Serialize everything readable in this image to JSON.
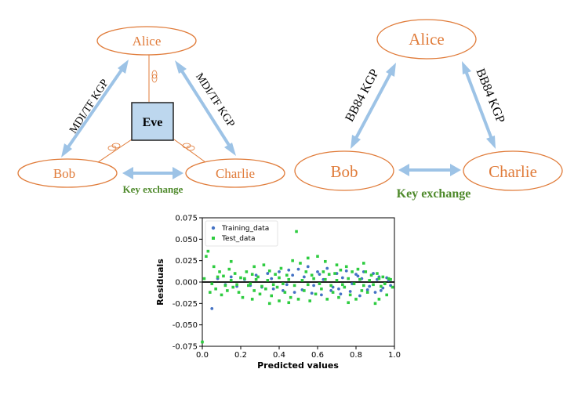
{
  "left_diagram": {
    "nodes": {
      "alice": "Alice",
      "bob": "Bob",
      "charlie": "Charlie",
      "eve": "Eve"
    },
    "edge_left_label": "MDI/TF KGP",
    "edge_right_label": "MDI/TF KGP",
    "exchange_label": "Key exchange"
  },
  "right_diagram": {
    "nodes": {
      "alice": "Alice",
      "bob": "Bob",
      "charlie": "Charlie"
    },
    "edge_left_label": "BB84 KGP",
    "edge_right_label": "BB84 KGP",
    "exchange_label": "Key exchange"
  },
  "colors": {
    "node_stroke": "#e07b39",
    "arrow": "#9dc3e6",
    "eve_fill": "#bdd7ee",
    "green_label": "#4f8a2c",
    "training": "#4472c4",
    "test": "#2ecc40"
  },
  "chart_data": {
    "type": "scatter",
    "xlabel": "Predicted values",
    "ylabel": "Residuals",
    "xlim": [
      0.0,
      1.0
    ],
    "ylim": [
      -0.075,
      0.075
    ],
    "xticks": [
      "0.0",
      "0.2",
      "0.4",
      "0.6",
      "0.8",
      "1.0"
    ],
    "yticks": [
      "0.075",
      "0.050",
      "0.025",
      "0.000",
      "-0.025",
      "-0.050",
      "-0.075"
    ],
    "legend_position": "top-left",
    "reference_line_y": 0.0,
    "series": [
      {
        "name": "Training_data",
        "marker": "circle",
        "points": [
          [
            0.05,
            -0.031
          ],
          [
            0.08,
            0.004
          ],
          [
            0.12,
            -0.003
          ],
          [
            0.15,
            0.006
          ],
          [
            0.18,
            -0.005
          ],
          [
            0.22,
            0.003
          ],
          [
            0.25,
            -0.004
          ],
          [
            0.28,
            0.008
          ],
          [
            0.31,
            -0.006
          ],
          [
            0.34,
            0.01
          ],
          [
            0.37,
            -0.008
          ],
          [
            0.4,
            0.012
          ],
          [
            0.42,
            -0.01
          ],
          [
            0.45,
            0.014
          ],
          [
            0.48,
            -0.012
          ],
          [
            0.5,
            0.015
          ],
          [
            0.52,
            -0.009
          ],
          [
            0.55,
            0.018
          ],
          [
            0.57,
            -0.013
          ],
          [
            0.6,
            0.012
          ],
          [
            0.62,
            -0.015
          ],
          [
            0.65,
            0.016
          ],
          [
            0.67,
            -0.01
          ],
          [
            0.7,
            0.01
          ],
          [
            0.72,
            -0.014
          ],
          [
            0.75,
            0.013
          ],
          [
            0.77,
            -0.011
          ],
          [
            0.8,
            0.009
          ],
          [
            0.82,
            -0.016
          ],
          [
            0.84,
            0.012
          ],
          [
            0.86,
            -0.009
          ],
          [
            0.88,
            0.008
          ],
          [
            0.9,
            -0.012
          ],
          [
            0.92,
            0.006
          ],
          [
            0.94,
            -0.007
          ],
          [
            0.96,
            0.005
          ],
          [
            0.98,
            -0.004
          ],
          [
            0.36,
            0.004
          ],
          [
            0.44,
            -0.003
          ],
          [
            0.53,
            0.006
          ],
          [
            0.58,
            -0.004
          ],
          [
            0.63,
            0.003
          ],
          [
            0.68,
            -0.006
          ],
          [
            0.73,
            0.005
          ],
          [
            0.78,
            -0.002
          ],
          [
            0.83,
            0.004
          ],
          [
            0.87,
            -0.005
          ],
          [
            0.91,
            0.003
          ],
          [
            0.95,
            -0.002
          ],
          [
            0.47,
            0.008
          ],
          [
            0.61,
            0.009
          ],
          [
            0.71,
            -0.008
          ],
          [
            0.81,
            0.007
          ],
          [
            0.89,
            0.01
          ],
          [
            0.93,
            -0.01
          ],
          [
            0.97,
            0.002
          ]
        ]
      },
      {
        "name": "Test_data",
        "marker": "square",
        "points": [
          [
            0.0,
            -0.07
          ],
          [
            0.02,
            0.03
          ],
          [
            0.03,
            0.036
          ],
          [
            0.04,
            -0.012
          ],
          [
            0.06,
            0.018
          ],
          [
            0.07,
            -0.008
          ],
          [
            0.09,
            0.012
          ],
          [
            0.1,
            -0.015
          ],
          [
            0.11,
            0.007
          ],
          [
            0.13,
            -0.01
          ],
          [
            0.14,
            0.015
          ],
          [
            0.16,
            -0.006
          ],
          [
            0.17,
            0.01
          ],
          [
            0.19,
            -0.012
          ],
          [
            0.2,
            0.005
          ],
          [
            0.21,
            -0.018
          ],
          [
            0.23,
            0.012
          ],
          [
            0.24,
            -0.004
          ],
          [
            0.26,
            0.009
          ],
          [
            0.27,
            -0.01
          ],
          [
            0.29,
            0.006
          ],
          [
            0.3,
            -0.014
          ],
          [
            0.32,
            0.02
          ],
          [
            0.33,
            -0.008
          ],
          [
            0.35,
            0.013
          ],
          [
            0.36,
            -0.016
          ],
          [
            0.38,
            0.009
          ],
          [
            0.39,
            -0.006
          ],
          [
            0.41,
            0.016
          ],
          [
            0.43,
            -0.012
          ],
          [
            0.44,
            0.008
          ],
          [
            0.46,
            -0.018
          ],
          [
            0.47,
            0.025
          ],
          [
            0.49,
            0.059
          ],
          [
            0.5,
            -0.02
          ],
          [
            0.51,
            0.022
          ],
          [
            0.53,
            -0.01
          ],
          [
            0.54,
            0.012
          ],
          [
            0.56,
            -0.022
          ],
          [
            0.57,
            0.008
          ],
          [
            0.59,
            -0.014
          ],
          [
            0.6,
            0.03
          ],
          [
            0.62,
            -0.008
          ],
          [
            0.63,
            0.012
          ],
          [
            0.65,
            -0.02
          ],
          [
            0.66,
            0.009
          ],
          [
            0.68,
            -0.012
          ],
          [
            0.69,
            0.01
          ],
          [
            0.71,
            -0.018
          ],
          [
            0.72,
            0.014
          ],
          [
            0.74,
            -0.006
          ],
          [
            0.75,
            0.018
          ],
          [
            0.77,
            -0.015
          ],
          [
            0.78,
            0.012
          ],
          [
            0.8,
            -0.02
          ],
          [
            0.81,
            0.015
          ],
          [
            0.83,
            -0.01
          ],
          [
            0.85,
            0.012
          ],
          [
            0.86,
            -0.012
          ],
          [
            0.88,
            0.008
          ],
          [
            0.9,
            -0.025
          ],
          [
            0.91,
            0.01
          ],
          [
            0.93,
            -0.005
          ],
          [
            0.94,
            0.006
          ],
          [
            0.96,
            -0.015
          ],
          [
            0.97,
            0.004
          ],
          [
            0.99,
            -0.006
          ],
          [
            0.01,
            0.004
          ],
          [
            0.05,
            -0.002
          ],
          [
            0.08,
            0.006
          ],
          [
            0.12,
            -0.004
          ],
          [
            0.15,
            0.002
          ],
          [
            0.18,
            -0.003
          ],
          [
            0.22,
            0.004
          ],
          [
            0.25,
            -0.002
          ],
          [
            0.28,
            0.003
          ],
          [
            0.31,
            -0.005
          ],
          [
            0.34,
            0.002
          ],
          [
            0.37,
            -0.003
          ],
          [
            0.4,
            0.005
          ],
          [
            0.42,
            -0.002
          ],
          [
            0.45,
            0.003
          ],
          [
            0.48,
            -0.004
          ],
          [
            0.52,
            0.002
          ],
          [
            0.55,
            -0.003
          ],
          [
            0.58,
            0.004
          ],
          [
            0.61,
            -0.002
          ],
          [
            0.64,
            0.003
          ],
          [
            0.67,
            -0.004
          ],
          [
            0.7,
            0.002
          ],
          [
            0.73,
            -0.003
          ],
          [
            0.76,
            0.004
          ],
          [
            0.79,
            -0.002
          ],
          [
            0.82,
            0.003
          ],
          [
            0.84,
            -0.004
          ],
          [
            0.87,
            0.002
          ],
          [
            0.89,
            -0.003
          ],
          [
            0.92,
            0.004
          ],
          [
            0.95,
            -0.002
          ],
          [
            0.98,
            0.003
          ],
          [
            0.15,
            0.024
          ],
          [
            0.27,
            0.018
          ],
          [
            0.35,
            -0.025
          ],
          [
            0.4,
            -0.022
          ],
          [
            0.55,
            0.028
          ],
          [
            0.64,
            0.024
          ],
          [
            0.7,
            0.02
          ],
          [
            0.76,
            -0.024
          ],
          [
            0.84,
            0.022
          ],
          [
            0.92,
            -0.02
          ],
          [
            0.26,
            -0.02
          ],
          [
            0.45,
            -0.024
          ]
        ]
      }
    ]
  }
}
